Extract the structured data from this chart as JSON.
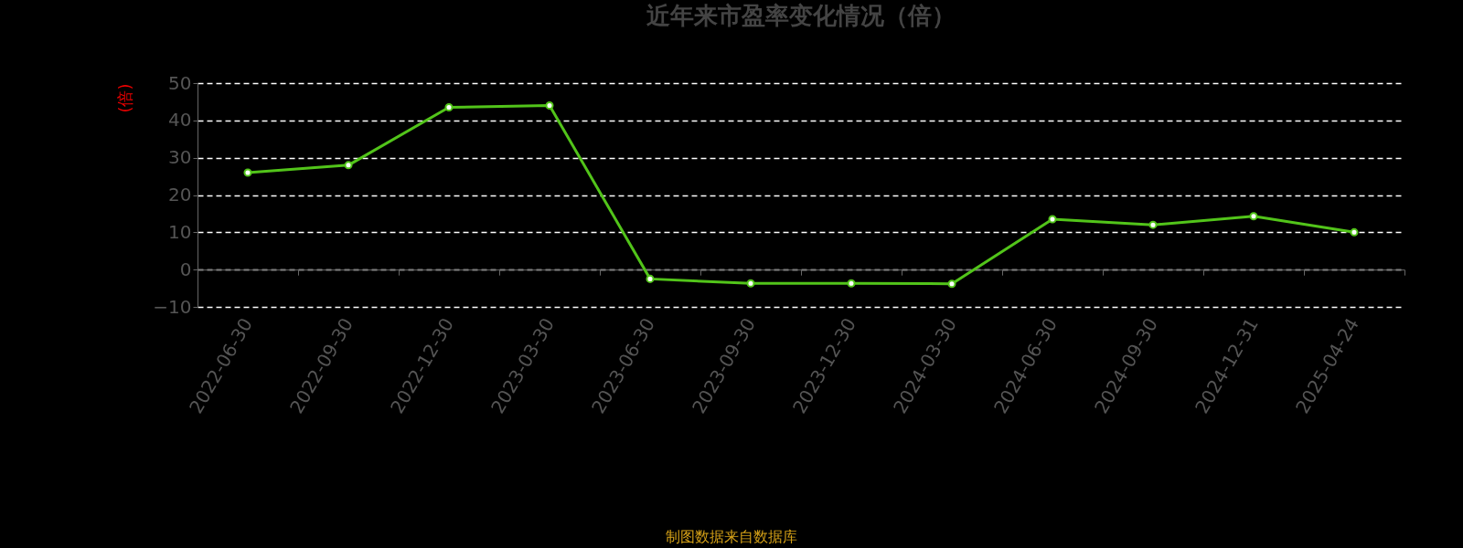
{
  "chart_data": {
    "type": "line",
    "title": "近年来市盈率变化情况（倍）",
    "ylabel": "(倍)",
    "categories": [
      "2022-06-30",
      "2022-09-30",
      "2022-12-30",
      "2023-03-30",
      "2023-06-30",
      "2023-09-30",
      "2023-12-30",
      "2024-03-30",
      "2024-06-30",
      "2024-09-30",
      "2024-12-31",
      "2025-04-24"
    ],
    "series": [
      {
        "color": "#52c41a",
        "values": [
          26,
          28,
          43.5,
          44,
          -2.5,
          -3.7,
          -3.7,
          -3.8,
          13.5,
          12,
          14.3,
          10
        ]
      }
    ],
    "ylim": [
      -10,
      50
    ],
    "yticks": [
      -10,
      0,
      10,
      20,
      30,
      40,
      50
    ],
    "grid": "y",
    "marker": "circle",
    "line_style": "solid",
    "annotations": [
      "制图数据来自数据库"
    ]
  }
}
